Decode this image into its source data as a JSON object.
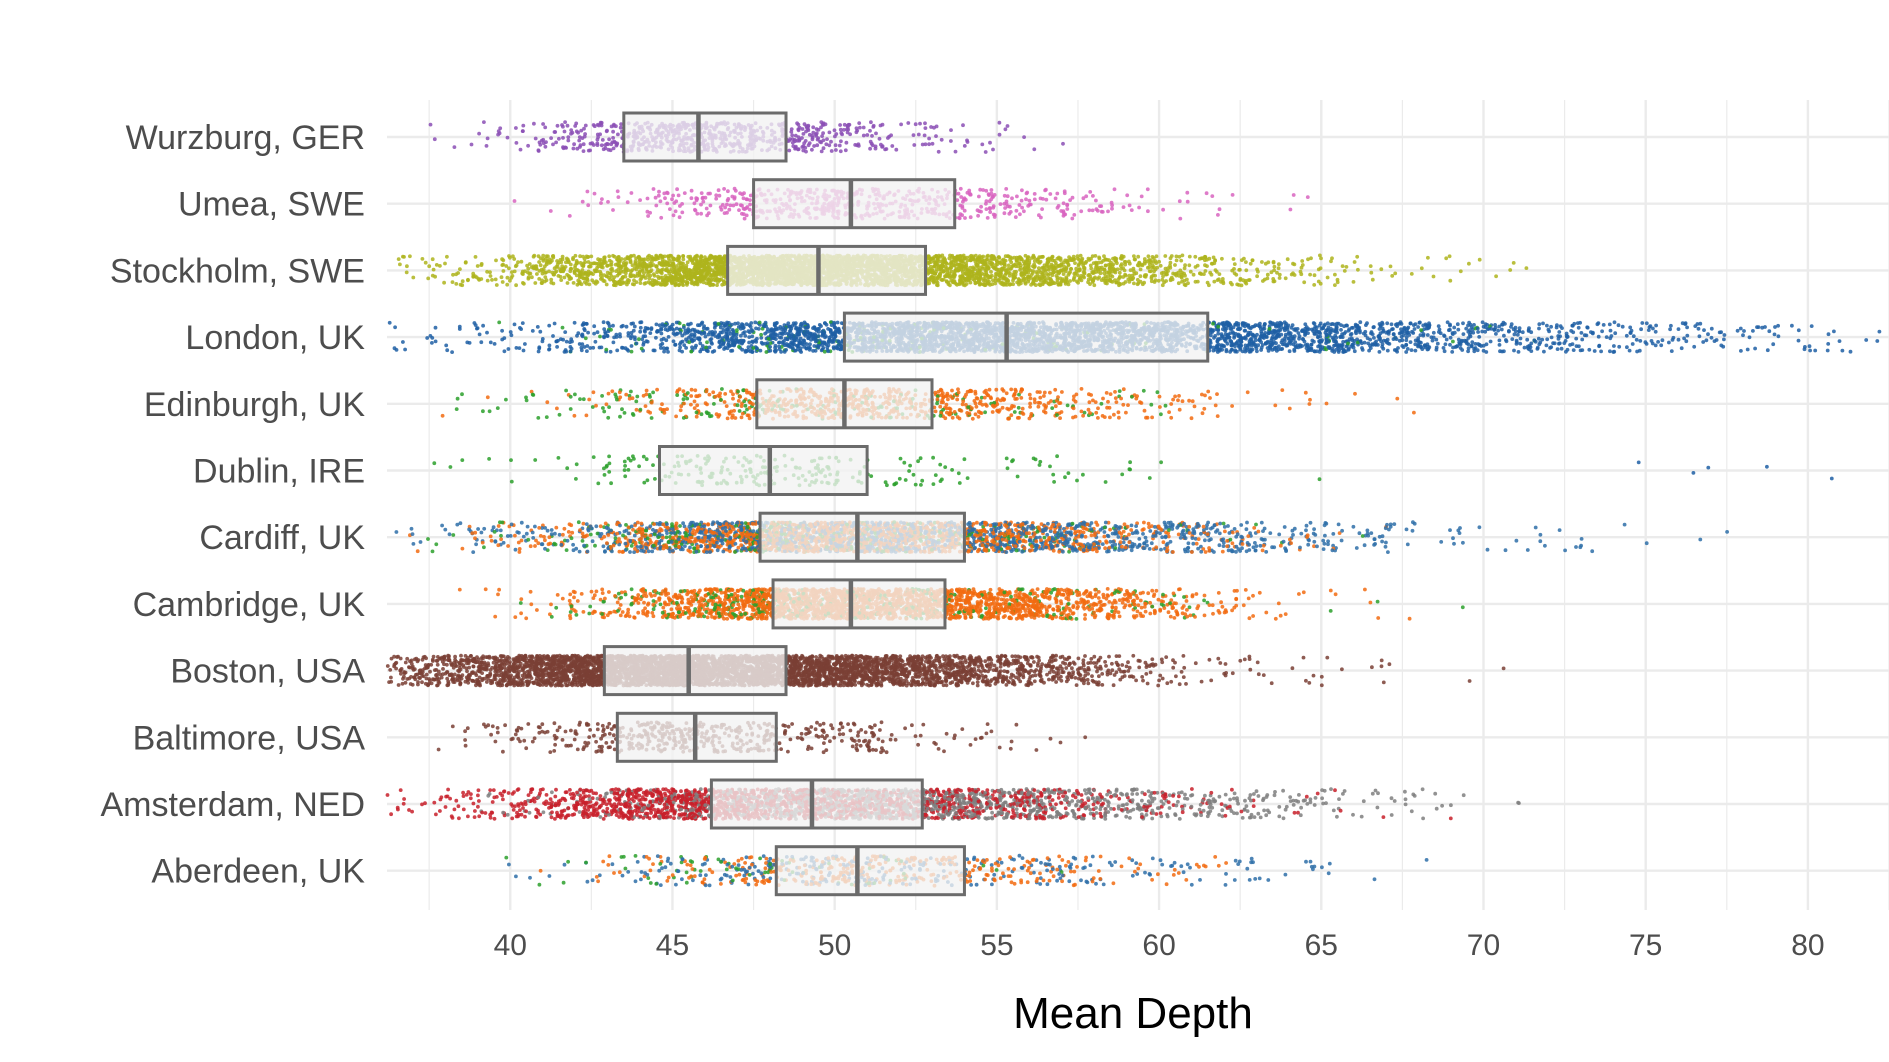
{
  "chart_data": {
    "type": "scatter",
    "subtype": "jittered strip plot with overlaid box plots (horizontal)",
    "title": "",
    "xlabel": "Mean Depth",
    "ylabel": "",
    "xlim": [
      36.2,
      82.5
    ],
    "x_ticks": [
      40,
      45,
      50,
      55,
      60,
      65,
      70,
      75,
      80
    ],
    "grid": true,
    "legend": "none",
    "categories": [
      "Wurzburg, GER",
      "Umea, SWE",
      "Stockholm, SWE",
      "London, UK",
      "Edinburgh, UK",
      "Dublin, IRE",
      "Cardiff, UK",
      "Cambridge, UK",
      "Boston, USA",
      "Baltimore, USA",
      "Amsterdam, NED",
      "Aberdeen, UK"
    ],
    "boxes": [
      {
        "category": "Wurzburg, GER",
        "q1": 43.5,
        "median": 45.8,
        "q3": 48.5
      },
      {
        "category": "Umea, SWE",
        "q1": 47.5,
        "median": 50.5,
        "q3": 53.7
      },
      {
        "category": "Stockholm, SWE",
        "q1": 46.7,
        "median": 49.5,
        "q3": 52.8
      },
      {
        "category": "London, UK",
        "q1": 50.3,
        "median": 55.3,
        "q3": 61.5
      },
      {
        "category": "Edinburgh, UK",
        "q1": 47.6,
        "median": 50.3,
        "q3": 53.0
      },
      {
        "category": "Dublin, IRE",
        "q1": 44.6,
        "median": 48.0,
        "q3": 51.0
      },
      {
        "category": "Cardiff, UK",
        "q1": 47.7,
        "median": 50.7,
        "q3": 54.0
      },
      {
        "category": "Cambridge, UK",
        "q1": 48.1,
        "median": 50.5,
        "q3": 53.4
      },
      {
        "category": "Boston, USA",
        "q1": 42.9,
        "median": 45.5,
        "q3": 48.5
      },
      {
        "category": "Baltimore, USA",
        "q1": 43.3,
        "median": 45.7,
        "q3": 48.2
      },
      {
        "category": "Amsterdam, NED",
        "q1": 46.2,
        "median": 49.3,
        "q3": 52.7
      },
      {
        "category": "Aberdeen, UK",
        "q1": 48.2,
        "median": 50.7,
        "q3": 54.0
      }
    ],
    "point_distributions": [
      {
        "category": "Wurzburg, GER",
        "n": 700,
        "groups": [
          {
            "color": "#8B4FB5",
            "center": 46.0,
            "spread": 3.2,
            "weight": 1.0
          }
        ],
        "range": [
          37.5,
          61.5
        ]
      },
      {
        "category": "Umea, SWE",
        "n": 600,
        "groups": [
          {
            "color": "#D864C0",
            "center": 50.7,
            "spread": 4.2,
            "weight": 1.0
          }
        ],
        "range": [
          37.0,
          79.0
        ]
      },
      {
        "category": "Stockholm, SWE",
        "n": 4000,
        "groups": [
          {
            "color": "#AEB41C",
            "center": 49.7,
            "spread": 5.5,
            "weight": 1.0
          }
        ],
        "range": [
          36.2,
          77.5
        ]
      },
      {
        "category": "London, UK",
        "n": 3800,
        "groups": [
          {
            "color": "#1F5FA5",
            "center": 56.0,
            "spread": 8.5,
            "weight": 0.96
          },
          {
            "color": "#2CA02C",
            "center": 52.0,
            "spread": 6.0,
            "weight": 0.04
          }
        ],
        "range": [
          36.2,
          82.5
        ]
      },
      {
        "category": "Edinburgh, UK",
        "n": 900,
        "groups": [
          {
            "color": "#F26B10",
            "center": 51.0,
            "spread": 4.5,
            "weight": 0.8
          },
          {
            "color": "#2CA02C",
            "center": 48.0,
            "spread": 5.0,
            "weight": 0.2
          }
        ],
        "range": [
          36.2,
          78.5
        ]
      },
      {
        "category": "Dublin, IRE",
        "n": 250,
        "groups": [
          {
            "color": "#2CA02C",
            "center": 48.0,
            "spread": 4.2,
            "weight": 0.97
          },
          {
            "color": "#1F5FA5",
            "center": 78.0,
            "spread": 3.0,
            "weight": 0.03
          }
        ],
        "range": [
          36.2,
          82.5
        ]
      },
      {
        "category": "Cardiff, UK",
        "n": 3200,
        "groups": [
          {
            "color": "#F26B10",
            "center": 50.5,
            "spread": 5.0,
            "weight": 0.45
          },
          {
            "color": "#2E6FA8",
            "center": 52.5,
            "spread": 7.0,
            "weight": 0.45
          },
          {
            "color": "#2CA02C",
            "center": 49.0,
            "spread": 5.0,
            "weight": 0.1
          }
        ],
        "range": [
          36.2,
          82.5
        ]
      },
      {
        "category": "Cambridge, UK",
        "n": 2600,
        "groups": [
          {
            "color": "#F26B10",
            "center": 51.0,
            "spread": 4.5,
            "weight": 0.85
          },
          {
            "color": "#2CA02C",
            "center": 50.0,
            "spread": 4.5,
            "weight": 0.15
          }
        ],
        "range": [
          36.2,
          82.5
        ]
      },
      {
        "category": "Boston, USA",
        "n": 5000,
        "groups": [
          {
            "color": "#7A4035",
            "center": 46.0,
            "spread": 5.5,
            "weight": 1.0
          }
        ],
        "range": [
          36.2,
          79.0
        ]
      },
      {
        "category": "Baltimore, USA",
        "n": 500,
        "groups": [
          {
            "color": "#7A4035",
            "center": 45.8,
            "spread": 3.5,
            "weight": 1.0
          }
        ],
        "range": [
          37.5,
          73.5
        ]
      },
      {
        "category": "Amsterdam, NED",
        "n": 3000,
        "groups": [
          {
            "color": "#C8202A",
            "center": 47.5,
            "spread": 5.5,
            "weight": 0.55
          },
          {
            "color": "#7F7F7F",
            "center": 52.5,
            "spread": 5.5,
            "weight": 0.45
          }
        ],
        "range": [
          36.2,
          71.5
        ]
      },
      {
        "category": "Aberdeen, UK",
        "n": 700,
        "groups": [
          {
            "color": "#F26B10",
            "center": 51.0,
            "spread": 4.0,
            "weight": 0.5
          },
          {
            "color": "#2E6FA8",
            "center": 51.0,
            "spread": 6.0,
            "weight": 0.42
          },
          {
            "color": "#2CA02C",
            "center": 48.0,
            "spread": 3.5,
            "weight": 0.08
          }
        ],
        "range": [
          38.5,
          82.5
        ]
      }
    ]
  }
}
